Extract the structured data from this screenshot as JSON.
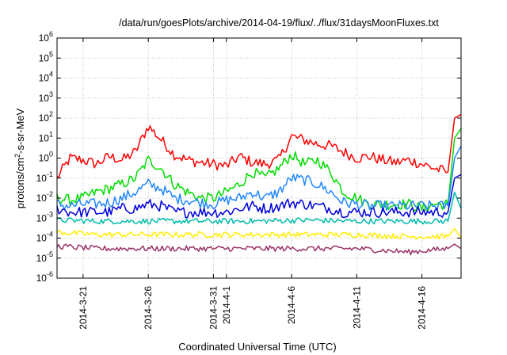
{
  "chart_data": {
    "type": "line",
    "title": "/data/run/goesPlots/archive/2014-04-19/flux/../flux/31daysMoonFluxes.txt",
    "xlabel": "Coordinated Universal Time (UTC)",
    "ylabel": {
      "prefix": "protons/cm",
      "sup": "2",
      "suffix": "-s-sr-MeV"
    },
    "y_scale": "log",
    "ylim": [
      1e-06,
      1000000.0
    ],
    "xlim": [
      "2014-03-19",
      "2014-04-19"
    ],
    "grid": true,
    "legend": "none",
    "y_ticks": [
      {
        "base": "10",
        "exp": "6",
        "value": 1000000.0
      },
      {
        "base": "10",
        "exp": "5",
        "value": 100000.0
      },
      {
        "base": "10",
        "exp": "4",
        "value": 10000.0
      },
      {
        "base": "10",
        "exp": "3",
        "value": 1000.0
      },
      {
        "base": "10",
        "exp": "2",
        "value": 100.0
      },
      {
        "base": "10",
        "exp": "1",
        "value": 10.0
      },
      {
        "base": "10",
        "exp": "0",
        "value": 1.0
      },
      {
        "base": "10",
        "exp": "-1",
        "value": 0.1
      },
      {
        "base": "10",
        "exp": "-2",
        "value": 0.01
      },
      {
        "base": "10",
        "exp": "-3",
        "value": 0.001
      },
      {
        "base": "10",
        "exp": "-4",
        "value": 0.0001
      },
      {
        "base": "10",
        "exp": "-5",
        "value": 1e-05
      },
      {
        "base": "10",
        "exp": "-6",
        "value": 1e-06
      }
    ],
    "x_ticks": [
      {
        "label": "2014-3-21",
        "date": "2014-03-21"
      },
      {
        "label": "2014-3-26",
        "date": "2014-03-26"
      },
      {
        "label": "2014-3-31",
        "date": "2014-03-31"
      },
      {
        "label": "2014-4-1",
        "date": "2014-04-01"
      },
      {
        "label": "2014-4-6",
        "date": "2014-04-06"
      },
      {
        "label": "2014-4-11",
        "date": "2014-04-11"
      },
      {
        "label": "2014-4-16",
        "date": "2014-04-16"
      }
    ],
    "series": [
      {
        "color": "#ff0000",
        "dates": [
          "2014-03-19",
          "2014-03-20",
          "2014-03-21",
          "2014-03-22",
          "2014-03-23",
          "2014-03-24",
          "2014-03-25",
          "2014-03-26",
          "2014-03-27",
          "2014-03-28",
          "2014-03-29",
          "2014-03-30",
          "2014-03-31",
          "2014-04-01",
          "2014-04-02",
          "2014-04-03",
          "2014-04-04",
          "2014-04-05",
          "2014-04-06",
          "2014-04-07",
          "2014-04-08",
          "2014-04-09",
          "2014-04-10",
          "2014-04-11",
          "2014-04-12",
          "2014-04-13",
          "2014-04-14",
          "2014-04-15",
          "2014-04-16",
          "2014-04-17",
          "2014-04-18",
          "2014-04-18T12:00",
          "2014-04-19"
        ],
        "values": [
          0.1,
          1.0,
          0.8,
          0.5,
          1.2,
          0.8,
          2.0,
          40,
          8,
          1.5,
          0.8,
          0.6,
          0.5,
          0.4,
          1.2,
          0.6,
          0.5,
          0.8,
          12,
          8,
          5,
          4,
          2,
          1,
          1.2,
          0.8,
          0.6,
          0.8,
          0.5,
          0.3,
          0.2,
          100,
          150
        ]
      },
      {
        "color": "#00dd00",
        "dates": [
          "2014-03-19",
          "2014-03-20",
          "2014-03-21",
          "2014-03-22",
          "2014-03-23",
          "2014-03-24",
          "2014-03-25",
          "2014-03-26",
          "2014-03-27",
          "2014-03-28",
          "2014-03-29",
          "2014-03-30",
          "2014-03-31",
          "2014-04-01",
          "2014-04-02",
          "2014-04-03",
          "2014-04-04",
          "2014-04-05",
          "2014-04-06",
          "2014-04-07",
          "2014-04-08",
          "2014-04-09",
          "2014-04-10",
          "2014-04-11",
          "2014-04-12",
          "2014-04-13",
          "2014-04-14",
          "2014-04-15",
          "2014-04-16",
          "2014-04-17",
          "2014-04-18",
          "2014-04-18T12:00",
          "2014-04-19"
        ],
        "values": [
          0.01,
          0.008,
          0.01,
          0.02,
          0.03,
          0.05,
          0.1,
          0.8,
          0.3,
          0.05,
          0.02,
          0.01,
          0.01,
          0.02,
          0.05,
          0.2,
          0.1,
          0.3,
          1.5,
          0.5,
          0.8,
          0.2,
          0.02,
          0.01,
          0.005,
          0.005,
          0.005,
          0.005,
          0.003,
          0.005,
          0.005,
          10,
          30
        ]
      },
      {
        "color": "#2288ff",
        "dates": [
          "2014-03-19",
          "2014-03-20",
          "2014-03-21",
          "2014-03-22",
          "2014-03-23",
          "2014-03-24",
          "2014-03-25",
          "2014-03-26",
          "2014-03-27",
          "2014-03-28",
          "2014-03-29",
          "2014-03-30",
          "2014-03-31",
          "2014-04-01",
          "2014-04-02",
          "2014-04-03",
          "2014-04-04",
          "2014-04-05",
          "2014-04-06",
          "2014-04-07",
          "2014-04-08",
          "2014-04-09",
          "2014-04-10",
          "2014-04-11",
          "2014-04-12",
          "2014-04-13",
          "2014-04-14",
          "2014-04-15",
          "2014-04-16",
          "2014-04-17",
          "2014-04-18",
          "2014-04-18T12:00",
          "2014-04-19"
        ],
        "values": [
          0.005,
          0.004,
          0.005,
          0.005,
          0.006,
          0.01,
          0.02,
          0.05,
          0.03,
          0.01,
          0.008,
          0.006,
          0.005,
          0.008,
          0.01,
          0.02,
          0.01,
          0.02,
          0.1,
          0.08,
          0.05,
          0.02,
          0.006,
          0.005,
          0.004,
          0.004,
          0.004,
          0.004,
          0.004,
          0.004,
          0.004,
          1,
          4
        ]
      },
      {
        "color": "#0000dd",
        "dates": [
          "2014-03-19",
          "2014-03-20",
          "2014-03-21",
          "2014-03-22",
          "2014-03-23",
          "2014-03-24",
          "2014-03-25",
          "2014-03-26",
          "2014-03-27",
          "2014-03-28",
          "2014-03-29",
          "2014-03-30",
          "2014-03-31",
          "2014-04-01",
          "2014-04-02",
          "2014-04-03",
          "2014-04-04",
          "2014-04-05",
          "2014-04-06",
          "2014-04-07",
          "2014-04-08",
          "2014-04-09",
          "2014-04-10",
          "2014-04-11",
          "2014-04-12",
          "2014-04-13",
          "2014-04-14",
          "2014-04-15",
          "2014-04-16",
          "2014-04-17",
          "2014-04-18",
          "2014-04-18T12:00",
          "2014-04-19"
        ],
        "values": [
          0.003,
          0.002,
          0.002,
          0.002,
          0.002,
          0.003,
          0.003,
          0.005,
          0.004,
          0.002,
          0.002,
          0.002,
          0.002,
          0.002,
          0.003,
          0.004,
          0.003,
          0.004,
          0.006,
          0.005,
          0.004,
          0.003,
          0.002,
          0.002,
          0.002,
          0.002,
          0.002,
          0.002,
          0.002,
          0.002,
          0.002,
          0.1,
          0.15
        ]
      },
      {
        "color": "#00bbaa",
        "dates": [
          "2014-03-19",
          "2014-03-22",
          "2014-03-26",
          "2014-03-30",
          "2014-04-03",
          "2014-04-07",
          "2014-04-11",
          "2014-04-15",
          "2014-04-18",
          "2014-04-18T12:00",
          "2014-04-19"
        ],
        "values": [
          0.0008,
          0.0007,
          0.0007,
          0.0007,
          0.0007,
          0.0008,
          0.0007,
          0.0007,
          0.0007,
          0.02,
          0.003
        ]
      },
      {
        "color": "#ffee00",
        "dates": [
          "2014-03-19",
          "2014-03-22",
          "2014-03-26",
          "2014-03-30",
          "2014-04-03",
          "2014-04-07",
          "2014-04-11",
          "2014-04-15",
          "2014-04-18",
          "2014-04-18T12:00",
          "2014-04-19"
        ],
        "values": [
          0.0002,
          0.00015,
          0.00015,
          0.00015,
          0.00015,
          0.00015,
          0.00015,
          0.00012,
          0.00012,
          0.0003,
          0.0001
        ]
      },
      {
        "color": "#993366",
        "dates": [
          "2014-03-19",
          "2014-03-22",
          "2014-03-26",
          "2014-03-30",
          "2014-04-03",
          "2014-04-07",
          "2014-04-11",
          "2014-04-15",
          "2014-04-18",
          "2014-04-18T12:00",
          "2014-04-19"
        ],
        "values": [
          4e-05,
          3e-05,
          3e-05,
          3e-05,
          3e-05,
          3e-05,
          3e-05,
          2e-05,
          3e-05,
          5e-05,
          3e-05
        ]
      }
    ]
  }
}
